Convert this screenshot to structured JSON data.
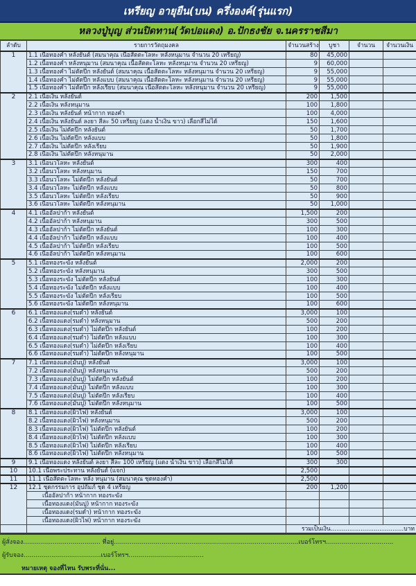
{
  "title": "เหรียญ อายุยืน(บน) ครึ่งองค์(รุ่นแรก)",
  "subtitle": "หลวงปู่บุญ ส่วนปิดทาน(วัดปอแดง) อ.ปักธงชัย จ.นครราชสีมา",
  "headers": [
    "ลำดับ",
    "รายการวัตถุมงคล",
    "จำนวนสร้าง",
    "บูชา",
    "จำนวน",
    "จำนวนเงิน"
  ],
  "groups": [
    {
      "no": "1",
      "items": [
        {
          "text": "1.1 เนื้อทองคำ หลังยันต์ (สมนาคุณ เนื้อสัตตะโลหะ หลังหนุมาน จำนวน 20 เหรียญ)",
          "qty": "80",
          "price": "45,000"
        },
        {
          "text": "1.2 เนื้อทองคำ หลังหนุมาน (สมนาคุณ เนื้อสัตตะโลหะ หลังหนุมาน จำนวน 20 เหรียญ)",
          "qty": "9",
          "price": "60,000"
        },
        {
          "text": "1.3 เนื้อทองคำ ไม่ตัดปีก หลังยันต์ (สมนาคุณ เนื้อสัตตะโลหะ หลังหนุมาน จำนวน 20 เหรียญ)",
          "qty": "9",
          "price": "55,000"
        },
        {
          "text": "1.4 เนื้อทองคำ ไม่ตัดปีก หลังแบบ (สมนาคุณ เนื้อสัตตะโลหะ หลังหนุมาน จำนวน 20 เหรียญ)",
          "qty": "9",
          "price": "55,000"
        },
        {
          "text": "1.5 เนื้อทองคำ ไม่ตัดปีก หลังเรียบ (สมนาคุณ เนื้อสัตตะโลหะ หลังหนุมาน จำนวน 20 เหรียญ)",
          "qty": "9",
          "price": "55,000"
        }
      ]
    },
    {
      "no": "2",
      "items": [
        {
          "text": "2.1 เนื้อเงิน หลังยันต์",
          "qty": "200",
          "price": "1,500"
        },
        {
          "text": "2.2 เนื้อเงิน หลังหนุมาน",
          "qty": "100",
          "price": "1,800"
        },
        {
          "text": "2.3 เนื้อเงิน หลังยันต์ หน้ากาก ทองคำ",
          "qty": "100",
          "price": "4,000"
        },
        {
          "text": "2.4 เนื้อเงิน หลังยันต์  ลงยา สีละ 50 เหรียญ (แดง น้ำเงิน ขาว) เลือกสีไม่ได้",
          "qty": "150",
          "price": "1,600"
        },
        {
          "text": "2.5 เนื้อเงิน ไม่ตัดปีก หลังยันต์",
          "qty": "50",
          "price": "1,700"
        },
        {
          "text": "2.6 เนื้อเงิน ไม่ตัดปีก หลังแบบ",
          "qty": "50",
          "price": "1,800"
        },
        {
          "text": "2.7 เนื้อเงิน ไม่ตัดปีก หลังเรียบ",
          "qty": "50",
          "price": "1,900"
        },
        {
          "text": "2.8 เนื้อเงิน ไม่ตัดปีก หลังหนุมาน",
          "qty": "50",
          "price": "2,000"
        }
      ]
    },
    {
      "no": "3",
      "items": [
        {
          "text": "3.1 เนื้อนวโลหะ หลังยันต์",
          "qty": "300",
          "price": "400"
        },
        {
          "text": "3.2 เนื้อนวโลหะ หลังหนุมาน",
          "qty": "150",
          "price": "700"
        },
        {
          "text": "3.3 เนื้อนวโลหะ ไม่ตัดปีก หลังยันต์",
          "qty": "50",
          "price": "700"
        },
        {
          "text": "3.4 เนื้อนวโลหะ ไม่ตัดปีก หลังแบบ",
          "qty": "50",
          "price": "800"
        },
        {
          "text": "3.5 เนื้อนวโลหะ ไม่ตัดปีก หลังเรียบ",
          "qty": "50",
          "price": "900"
        },
        {
          "text": "3.6 เนื้อนวโลหะ ไม่ตัดปีก หลังหนุมาน",
          "qty": "50",
          "price": "1,000"
        }
      ]
    },
    {
      "no": "4",
      "items": [
        {
          "text": "4.1 เนื้ออัลปาก้า หลังยันต์",
          "qty": "1,500",
          "price": "200"
        },
        {
          "text": "4.2 เนื้ออัลปาก้า หลังหนุมาน",
          "qty": "300",
          "price": "500"
        },
        {
          "text": "4.3 เนื้ออัลปาก้า ไม่ตัดปีก หลังยันต์",
          "qty": "100",
          "price": "300"
        },
        {
          "text": "4.4 เนื้ออัลปาก้า ไม่ตัดปีก หลังแบบ",
          "qty": "100",
          "price": "400"
        },
        {
          "text": "4.5 เนื้ออัลปาก้า ไม่ตัดปีก หลังเรียบ",
          "qty": "100",
          "price": "500"
        },
        {
          "text": "4.6 เนื้ออัลปาก้า ไม่ตัดปีก หลังหนุมาน",
          "qty": "100",
          "price": "600"
        }
      ]
    },
    {
      "no": "5",
      "items": [
        {
          "text": "5.1 เนื้อทองระฆัง หลังยันต์",
          "qty": "2,000",
          "price": "200"
        },
        {
          "text": "5.2 เนื้อทองระฆัง หลังหนุมาน",
          "qty": "300",
          "price": "500"
        },
        {
          "text": "5.3 เนื้อทองระฆัง ไม่ตัดปีก หลังยันต์",
          "qty": "100",
          "price": "300"
        },
        {
          "text": "5.4 เนื้อทองระฆัง ไม่ตัดปีก หลังแบบ",
          "qty": "100",
          "price": "400"
        },
        {
          "text": "5.5 เนื้อทองระฆัง ไม่ตัดปีก หลังเรียบ",
          "qty": "100",
          "price": "500"
        },
        {
          "text": "5.6 เนื้อทองระฆัง ไม่ตัดปีก หลังหนุมาน",
          "qty": "100",
          "price": "600"
        }
      ]
    },
    {
      "no": "6",
      "items": [
        {
          "text": "6.1 เนื้อทองแดง(รมดำ) หลังยันต์",
          "qty": "3,000",
          "price": "100"
        },
        {
          "text": "6.2 เนื้อทองแดง(รมดำ) หลังหนุมาน",
          "qty": "500",
          "price": "200"
        },
        {
          "text": "6.3 เนื้อทองแดง(รมดำ) ไม่ตัดปีก หลังยันต์",
          "qty": "100",
          "price": "200"
        },
        {
          "text": "6.4 เนื้อทองแดง(รมดำ) ไม่ตัดปีก หลังแบบ",
          "qty": "100",
          "price": "300"
        },
        {
          "text": "6.5 เนื้อทองแดง(รมดำ) ไม่ตัดปีก หลังเรียบ",
          "qty": "100",
          "price": "400"
        },
        {
          "text": "6.6 เนื้อทองแดง(รมดำ) ไม่ตัดปีก หลังหนุมาน",
          "qty": "100",
          "price": "500"
        }
      ]
    },
    {
      "no": "7",
      "items": [
        {
          "text": "7.1 เนื้อทองแดง(มันปู) หลังยันต์",
          "qty": "3,000",
          "price": "100"
        },
        {
          "text": "7.2 เนื้อทองแดง(มันปู) หลังหนุมาน",
          "qty": "500",
          "price": "200"
        },
        {
          "text": "7.3 เนื้อทองแดง(มันปู) ไม่ตัดปีก หลังยันต์",
          "qty": "100",
          "price": "200"
        },
        {
          "text": "7.4 เนื้อทองแดง(มันปู) ไม่ตัดปีก หลังแบบ",
          "qty": "100",
          "price": "300"
        },
        {
          "text": "7.5 เนื้อทองแดง(มันปู) ไม่ตัดปีก หลังเรียบ",
          "qty": "100",
          "price": "400"
        },
        {
          "text": "7.6 เนื้อทองแดง(มันปู) ไม่ตัดปีก หลังหนุมาน",
          "qty": "100",
          "price": "500"
        }
      ]
    },
    {
      "no": "8",
      "items": [
        {
          "text": "8.1 เนื้อทองแดง(ผิวไฟ) หลังยันต์",
          "qty": "3,000",
          "price": "100"
        },
        {
          "text": "8.2 เนื้อทองแดง(ผิวไฟ) หลังหนุมาน",
          "qty": "500",
          "price": "200"
        },
        {
          "text": "8.3 เนื้อทองแดง(ผิวไฟ) ไม่ตัดปีก หลังยันต์",
          "qty": "100",
          "price": "200"
        },
        {
          "text": "8.4 เนื้อทองแดง(ผิวไฟ) ไม่ตัดปีก หลังแบบ",
          "qty": "100",
          "price": "300"
        },
        {
          "text": "8.5 เนื้อทองแดง(ผิวไฟ) ไม่ตัดปีก หลังเรียบ",
          "qty": "100",
          "price": "400"
        },
        {
          "text": "8.6 เนื้อทองแดง(ผิวไฟ) ไม่ตัดปีก หลังหนุมาน",
          "qty": "100",
          "price": "500"
        }
      ]
    },
    {
      "no": "9",
      "items": [
        {
          "text": "9.1 เนื้อทองแดง หลังยันต์ ลงยา สีละ 100 เหรียญ (แดง น้ำเงิน ขาว) เลือกสีไม่ได้",
          "qty": "300",
          "price": "300"
        }
      ]
    },
    {
      "no": "10",
      "items": [
        {
          "text": "10.1 เนื้อพระประทาน หลังยันต์ (แจก)",
          "qty": "2,500",
          "price": ""
        }
      ]
    },
    {
      "no": "11",
      "items": [
        {
          "text": "11.1 เนื้อสัตตะโลหะ หลัง หนุมาน (สมนาคุณ ชุดทองคำ)",
          "qty": "2,500",
          "price": ""
        }
      ]
    },
    {
      "no": "12",
      "items": [
        {
          "text": "12.1 ชุดกรรมการ อุปถัมภ์ ชุด 4 เหรียญ",
          "qty": "200",
          "price": "1,200"
        },
        {
          "text": "เนื้ออัลปาก้า หน้ากาก ทองระฆัง",
          "qty": "",
          "price": "",
          "sub": true
        },
        {
          "text": "เนื้อทองแดง(มันปู) หน้ากาก ทองระฆัง",
          "qty": "",
          "price": "",
          "sub": true
        },
        {
          "text": "เนื้อทองแดง(รมดำ) หน้ากาก ทองระฆัง",
          "qty": "",
          "price": "",
          "sub": true
        },
        {
          "text": "เนื้อทองแดง(ผิวไฟ) หน้ากาก ทองระฆัง",
          "qty": "",
          "price": "",
          "sub": true
        }
      ]
    }
  ],
  "total_label": "รวมเป็นเงิน.......................................บาท",
  "footer": {
    "line1": "ผู้สั่งจอง.......................................   ที่อยู่.............................................................................................เบอร์โทรฯ..................................",
    "line2": "ผู้รับจอง.......................................เบอร์โทรฯ......................................",
    "note": "หมายเหตุ  จองที่ไหน รับพระที่นั่น..."
  }
}
